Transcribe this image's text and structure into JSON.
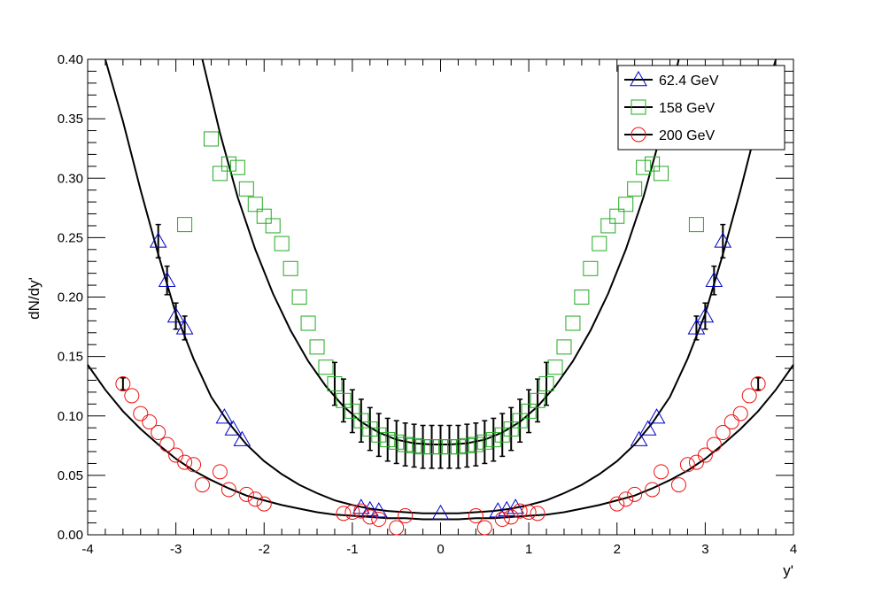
{
  "chart_data": {
    "type": "scatter",
    "title": "",
    "xlabel": "y'",
    "ylabel": "dN/dy'",
    "xlim": [
      -4,
      4
    ],
    "ylim": [
      0,
      0.4
    ],
    "grid": false,
    "legend_position": "top-right",
    "x_ticks": [
      "-4",
      "-3",
      "-2",
      "-1",
      "0",
      "1",
      "2",
      "3",
      "4"
    ],
    "y_ticks": [
      "0.00",
      "0.05",
      "0.10",
      "0.15",
      "0.20",
      "0.25",
      "0.30",
      "0.35",
      "0.40"
    ],
    "series": [
      {
        "name": "62.4 GeV",
        "marker": "triangle",
        "color": "#0000cc",
        "points": [
          {
            "x": -3.2,
            "y": 0.247,
            "err": 0.014
          },
          {
            "x": -3.1,
            "y": 0.214,
            "err": 0.012
          },
          {
            "x": -3.0,
            "y": 0.184,
            "err": 0.011
          },
          {
            "x": -2.9,
            "y": 0.174,
            "err": 0.01
          },
          {
            "x": -2.45,
            "y": 0.099
          },
          {
            "x": -2.35,
            "y": 0.089
          },
          {
            "x": -2.25,
            "y": 0.08
          },
          {
            "x": -0.9,
            "y": 0.023
          },
          {
            "x": -0.8,
            "y": 0.021
          },
          {
            "x": -0.7,
            "y": 0.02
          },
          {
            "x": 0.0,
            "y": 0.018
          },
          {
            "x": 0.65,
            "y": 0.02
          },
          {
            "x": 0.75,
            "y": 0.021
          },
          {
            "x": 0.85,
            "y": 0.023
          },
          {
            "x": 2.25,
            "y": 0.08
          },
          {
            "x": 2.35,
            "y": 0.089
          },
          {
            "x": 2.45,
            "y": 0.099
          },
          {
            "x": 2.9,
            "y": 0.174,
            "err": 0.01
          },
          {
            "x": 3.0,
            "y": 0.184,
            "err": 0.011
          },
          {
            "x": 3.1,
            "y": 0.214,
            "err": 0.012
          },
          {
            "x": 3.2,
            "y": 0.247,
            "err": 0.014
          }
        ]
      },
      {
        "name": "158 GeV",
        "marker": "square",
        "color": "#22aa22",
        "points": [
          {
            "x": -2.9,
            "y": 0.261
          },
          {
            "x": -2.6,
            "y": 0.333
          },
          {
            "x": -2.5,
            "y": 0.304
          },
          {
            "x": -2.4,
            "y": 0.312
          },
          {
            "x": -2.3,
            "y": 0.309
          },
          {
            "x": -2.2,
            "y": 0.291
          },
          {
            "x": -2.1,
            "y": 0.278
          },
          {
            "x": -2.0,
            "y": 0.268
          },
          {
            "x": -1.9,
            "y": 0.26
          },
          {
            "x": -1.8,
            "y": 0.245
          },
          {
            "x": -1.7,
            "y": 0.224
          },
          {
            "x": -1.6,
            "y": 0.2
          },
          {
            "x": -1.5,
            "y": 0.178
          },
          {
            "x": -1.4,
            "y": 0.158
          },
          {
            "x": -1.3,
            "y": 0.141
          },
          {
            "x": -1.2,
            "y": 0.127,
            "err": 0.018
          },
          {
            "x": -1.1,
            "y": 0.113,
            "err": 0.018
          },
          {
            "x": -1.0,
            "y": 0.104,
            "err": 0.018
          },
          {
            "x": -0.9,
            "y": 0.096,
            "err": 0.018
          },
          {
            "x": -0.8,
            "y": 0.089,
            "err": 0.018
          },
          {
            "x": -0.7,
            "y": 0.084,
            "err": 0.018
          },
          {
            "x": -0.6,
            "y": 0.08,
            "err": 0.018
          },
          {
            "x": -0.5,
            "y": 0.078,
            "err": 0.018
          },
          {
            "x": -0.4,
            "y": 0.076,
            "err": 0.018
          },
          {
            "x": -0.3,
            "y": 0.075,
            "err": 0.018
          },
          {
            "x": -0.2,
            "y": 0.074,
            "err": 0.018
          },
          {
            "x": -0.1,
            "y": 0.074,
            "err": 0.018
          },
          {
            "x": 0.0,
            "y": 0.074,
            "err": 0.018
          },
          {
            "x": 0.1,
            "y": 0.074,
            "err": 0.018
          },
          {
            "x": 0.2,
            "y": 0.074,
            "err": 0.018
          },
          {
            "x": 0.3,
            "y": 0.075,
            "err": 0.018
          },
          {
            "x": 0.4,
            "y": 0.076,
            "err": 0.018
          },
          {
            "x": 0.5,
            "y": 0.078,
            "err": 0.018
          },
          {
            "x": 0.6,
            "y": 0.08,
            "err": 0.018
          },
          {
            "x": 0.7,
            "y": 0.084,
            "err": 0.018
          },
          {
            "x": 0.8,
            "y": 0.089,
            "err": 0.018
          },
          {
            "x": 0.9,
            "y": 0.096,
            "err": 0.018
          },
          {
            "x": 1.0,
            "y": 0.104,
            "err": 0.018
          },
          {
            "x": 1.1,
            "y": 0.113,
            "err": 0.018
          },
          {
            "x": 1.2,
            "y": 0.127,
            "err": 0.018
          },
          {
            "x": 1.3,
            "y": 0.141
          },
          {
            "x": 1.4,
            "y": 0.158
          },
          {
            "x": 1.5,
            "y": 0.178
          },
          {
            "x": 1.6,
            "y": 0.2
          },
          {
            "x": 1.7,
            "y": 0.224
          },
          {
            "x": 1.8,
            "y": 0.245
          },
          {
            "x": 1.9,
            "y": 0.26
          },
          {
            "x": 2.0,
            "y": 0.268
          },
          {
            "x": 2.1,
            "y": 0.278
          },
          {
            "x": 2.2,
            "y": 0.291
          },
          {
            "x": 2.3,
            "y": 0.309
          },
          {
            "x": 2.4,
            "y": 0.312
          },
          {
            "x": 2.5,
            "y": 0.304
          },
          {
            "x": 2.6,
            "y": 0.333
          },
          {
            "x": 2.9,
            "y": 0.261
          }
        ]
      },
      {
        "name": "200 GeV",
        "marker": "circle",
        "color": "#ee1111",
        "points": [
          {
            "x": -3.6,
            "y": 0.127,
            "err": 0.005
          },
          {
            "x": -3.5,
            "y": 0.117
          },
          {
            "x": -3.4,
            "y": 0.102
          },
          {
            "x": -3.3,
            "y": 0.095
          },
          {
            "x": -3.2,
            "y": 0.086
          },
          {
            "x": -3.1,
            "y": 0.076
          },
          {
            "x": -3.0,
            "y": 0.067
          },
          {
            "x": -2.9,
            "y": 0.061
          },
          {
            "x": -2.8,
            "y": 0.059
          },
          {
            "x": -2.7,
            "y": 0.042
          },
          {
            "x": -2.5,
            "y": 0.053
          },
          {
            "x": -2.4,
            "y": 0.038
          },
          {
            "x": -2.2,
            "y": 0.034
          },
          {
            "x": -2.1,
            "y": 0.03
          },
          {
            "x": -2.0,
            "y": 0.026
          },
          {
            "x": -1.1,
            "y": 0.018
          },
          {
            "x": -1.0,
            "y": 0.019
          },
          {
            "x": -0.9,
            "y": 0.02
          },
          {
            "x": -0.8,
            "y": 0.015
          },
          {
            "x": -0.7,
            "y": 0.013
          },
          {
            "x": -0.5,
            "y": 0.006
          },
          {
            "x": -0.4,
            "y": 0.016
          },
          {
            "x": 0.4,
            "y": 0.016
          },
          {
            "x": 0.5,
            "y": 0.006
          },
          {
            "x": 0.7,
            "y": 0.013
          },
          {
            "x": 0.8,
            "y": 0.015
          },
          {
            "x": 0.9,
            "y": 0.02
          },
          {
            "x": 1.0,
            "y": 0.019
          },
          {
            "x": 1.1,
            "y": 0.018
          },
          {
            "x": 2.0,
            "y": 0.026
          },
          {
            "x": 2.1,
            "y": 0.03
          },
          {
            "x": 2.2,
            "y": 0.034
          },
          {
            "x": 2.4,
            "y": 0.038
          },
          {
            "x": 2.5,
            "y": 0.053
          },
          {
            "x": 2.7,
            "y": 0.042
          },
          {
            "x": 2.8,
            "y": 0.059
          },
          {
            "x": 2.9,
            "y": 0.061
          },
          {
            "x": 3.0,
            "y": 0.067
          },
          {
            "x": 3.1,
            "y": 0.076
          },
          {
            "x": 3.2,
            "y": 0.086
          },
          {
            "x": 3.3,
            "y": 0.095
          },
          {
            "x": 3.4,
            "y": 0.102
          },
          {
            "x": 3.5,
            "y": 0.117
          },
          {
            "x": 3.6,
            "y": 0.127,
            "err": 0.005
          }
        ]
      }
    ],
    "fit_curves": [
      {
        "for": "62.4 GeV",
        "color": "#000000",
        "x": [
          -3.8,
          -3.6,
          -3.4,
          -3.2,
          -3.0,
          -2.8,
          -2.6,
          -2.4,
          -2.2,
          -2.0,
          -1.8,
          -1.6,
          -1.4,
          -1.2,
          -1.0,
          -0.8,
          -0.6,
          -0.4,
          -0.2,
          0.0,
          0.2,
          0.4,
          0.6,
          0.8,
          1.0,
          1.2,
          1.4,
          1.6,
          1.8,
          2.0,
          2.2,
          2.4,
          2.6,
          2.8,
          3.0,
          3.2,
          3.4,
          3.6,
          3.8
        ],
        "y": [
          0.4,
          0.348,
          0.29,
          0.236,
          0.186,
          0.148,
          0.116,
          0.094,
          0.076,
          0.062,
          0.051,
          0.042,
          0.035,
          0.029,
          0.025,
          0.022,
          0.02,
          0.019,
          0.018,
          0.018,
          0.018,
          0.019,
          0.02,
          0.022,
          0.025,
          0.029,
          0.035,
          0.042,
          0.051,
          0.062,
          0.076,
          0.094,
          0.116,
          0.148,
          0.186,
          0.236,
          0.29,
          0.348,
          0.4
        ]
      },
      {
        "for": "158 GeV",
        "color": "#000000",
        "x": [
          -2.7,
          -2.5,
          -2.3,
          -2.1,
          -1.9,
          -1.7,
          -1.5,
          -1.3,
          -1.1,
          -0.9,
          -0.7,
          -0.5,
          -0.3,
          -0.1,
          0.1,
          0.3,
          0.5,
          0.7,
          0.9,
          1.1,
          1.3,
          1.5,
          1.7,
          1.9,
          2.1,
          2.3,
          2.5,
          2.7
        ],
        "y": [
          0.4,
          0.338,
          0.284,
          0.24,
          0.203,
          0.172,
          0.146,
          0.125,
          0.108,
          0.095,
          0.086,
          0.08,
          0.077,
          0.076,
          0.076,
          0.077,
          0.08,
          0.086,
          0.095,
          0.108,
          0.125,
          0.146,
          0.172,
          0.203,
          0.24,
          0.284,
          0.338,
          0.4
        ]
      },
      {
        "for": "200 GeV",
        "color": "#000000",
        "x": [
          -4.0,
          -3.8,
          -3.6,
          -3.4,
          -3.2,
          -3.0,
          -2.8,
          -2.6,
          -2.4,
          -2.2,
          -2.0,
          -1.8,
          -1.6,
          -1.4,
          -1.2,
          -1.0,
          -0.8,
          -0.6,
          -0.4,
          -0.2,
          0.0,
          0.2,
          0.4,
          0.6,
          0.8,
          1.0,
          1.2,
          1.4,
          1.6,
          1.8,
          2.0,
          2.2,
          2.4,
          2.6,
          2.8,
          3.0,
          3.2,
          3.4,
          3.6,
          3.8,
          4.0
        ],
        "y": [
          0.143,
          0.122,
          0.104,
          0.089,
          0.076,
          0.064,
          0.054,
          0.046,
          0.039,
          0.033,
          0.029,
          0.025,
          0.022,
          0.019,
          0.017,
          0.016,
          0.015,
          0.014,
          0.014,
          0.013,
          0.013,
          0.013,
          0.014,
          0.014,
          0.015,
          0.016,
          0.017,
          0.019,
          0.022,
          0.025,
          0.029,
          0.033,
          0.039,
          0.046,
          0.054,
          0.064,
          0.076,
          0.089,
          0.104,
          0.122,
          0.143
        ]
      }
    ]
  }
}
